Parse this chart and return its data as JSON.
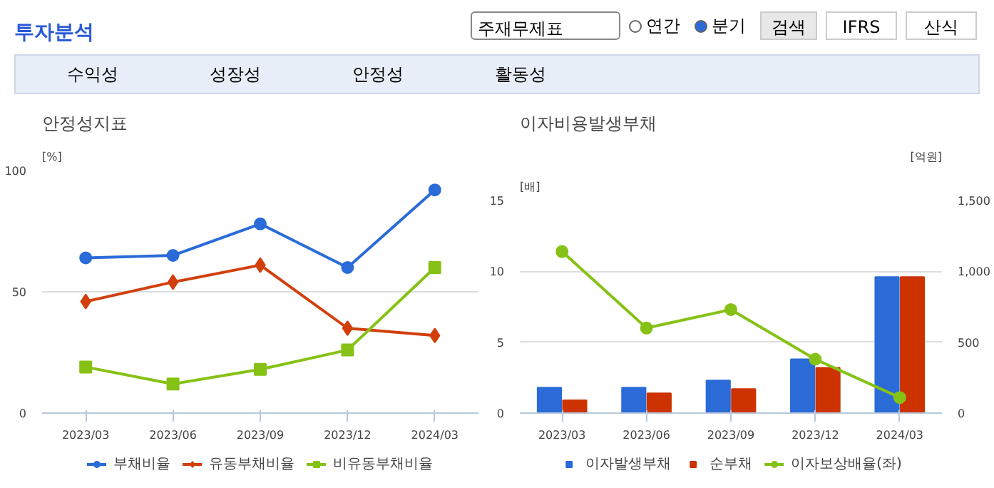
{
  "chart_data": [
    {
      "type": "other",
      "title": "투자분석",
      "annotations": [
        "주재무제표",
        "연간",
        "분기",
        "검색",
        "IFRS",
        "산식",
        "수익성",
        "성장성",
        "안정성",
        "활동성"
      ]
    },
    {
      "type": "line",
      "title": "안정성지표",
      "ylabel": "[%]",
      "categories": [
        "2023/03",
        "2023/06",
        "2023/09",
        "2023/12",
        "2024/03"
      ],
      "ylim": [
        0,
        100
      ],
      "yticks": [
        0,
        50,
        100
      ],
      "grid": "y",
      "legend": "bottom",
      "series": [
        {
          "name": "부채비율",
          "color": "#2a6bd8",
          "marker": "circle",
          "values": [
            64,
            65,
            78,
            60,
            92
          ]
        },
        {
          "name": "유동부채비율",
          "color": "#d23f0a",
          "marker": "diamond",
          "values": [
            46,
            54,
            61,
            35,
            32
          ]
        },
        {
          "name": "비유동부채비율",
          "color": "#86c215",
          "marker": "square",
          "values": [
            19,
            12,
            18,
            26,
            60
          ]
        }
      ]
    },
    {
      "type": "bar",
      "title": "이자비용발생부채",
      "ylabel": "[배]",
      "y2label": "[억원]",
      "categories": [
        "2023/03",
        "2023/06",
        "2023/09",
        "2023/12",
        "2024/03"
      ],
      "ylim": [
        0,
        15
      ],
      "yticks": [
        0,
        5,
        10,
        15
      ],
      "y2lim": [
        0,
        1500
      ],
      "y2ticks": [
        0,
        500,
        {
          "value": 1000,
          "label": "1,000"
        },
        {
          "value": 1500,
          "label": "1,500"
        }
      ],
      "grid": "y",
      "legend": "bottom",
      "series": [
        {
          "name": "이자발생부채",
          "color": "#2a6bd8",
          "axis": "y2",
          "values": [
            180,
            180,
            230,
            380,
            960
          ]
        },
        {
          "name": "순부채",
          "color": "#cc3300",
          "axis": "y2",
          "values": [
            90,
            140,
            170,
            320,
            960
          ]
        },
        {
          "name": "이자보상배율(좌)",
          "type": "line",
          "marker": "circle",
          "color": "#86c215",
          "values": [
            11.4,
            6.0,
            7.3,
            3.8,
            1.1
          ]
        }
      ]
    }
  ]
}
